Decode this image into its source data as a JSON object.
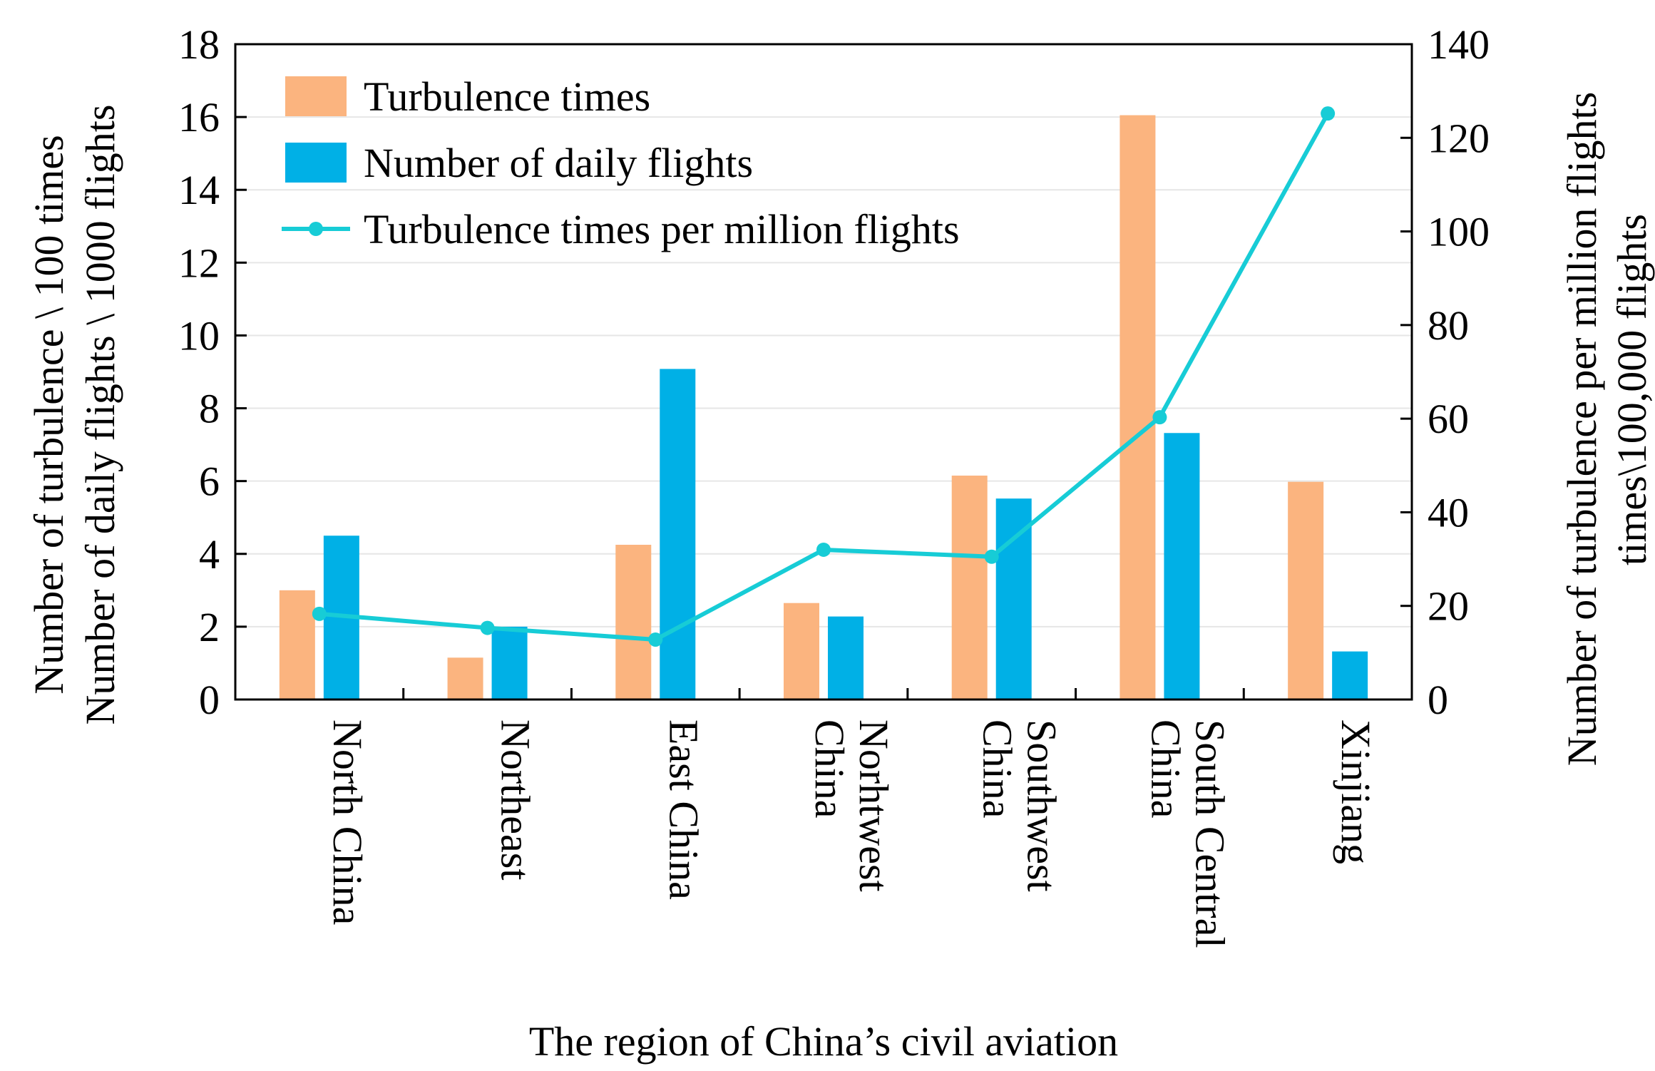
{
  "chart_data": {
    "type": "bar",
    "categories": [
      [
        "North China"
      ],
      [
        "Northeast"
      ],
      [
        "East China"
      ],
      [
        "Norhtwest",
        "China"
      ],
      [
        "Southwest",
        "China"
      ],
      [
        "South Central",
        "China"
      ],
      [
        "Xinjiang"
      ]
    ],
    "series": [
      {
        "name": "Turbulence times",
        "type": "bar",
        "axis": "left",
        "color": "#FBB47F",
        "values": [
          3.0,
          1.15,
          4.25,
          2.65,
          6.15,
          16.05,
          5.98
        ]
      },
      {
        "name": "Number of daily flights",
        "type": "bar",
        "axis": "left",
        "color": "#00B0E6",
        "values": [
          4.5,
          2.0,
          9.08,
          2.28,
          5.52,
          7.32,
          1.32
        ]
      },
      {
        "name": "Turbulence times per million flights",
        "type": "line",
        "axis": "right",
        "color": "#17CCD6",
        "values": [
          18.3,
          15.3,
          12.8,
          32.0,
          30.5,
          60.3,
          125.2
        ]
      }
    ],
    "left_axis": {
      "label_lines": [
        "Number of turbulence \\ 100 times",
        "Number of daily flights \\ 1000 flights"
      ],
      "ylim": [
        0,
        18
      ],
      "ticks": [
        0,
        2,
        4,
        6,
        8,
        10,
        12,
        14,
        16,
        18
      ]
    },
    "right_axis": {
      "label_lines": [
        "Number of turbulence per million flights",
        "times\\100,000 flights"
      ],
      "ylim": [
        0,
        140
      ],
      "ticks": [
        0,
        20,
        40,
        60,
        80,
        100,
        120,
        140
      ]
    },
    "xlabel": "The region of China’s civil aviation",
    "grid": true,
    "legend": "top-left"
  }
}
